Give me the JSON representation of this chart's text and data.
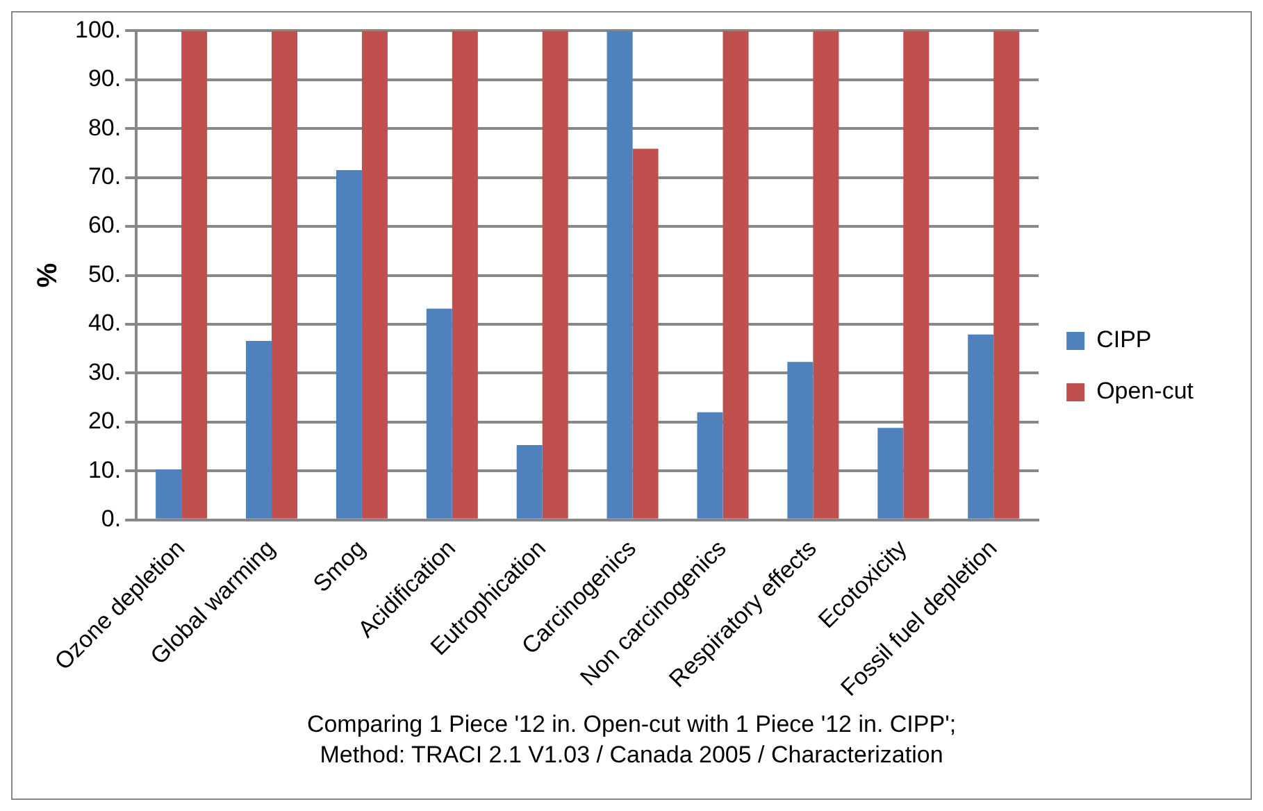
{
  "chart_data": {
    "type": "bar",
    "ylabel": "%",
    "categories": [
      "Ozone depletion",
      "Global warming",
      "Smog",
      "Acidification",
      "Eutrophication",
      "Carcinogenics",
      "Non carcinogenics",
      "Respiratory effects",
      "Ecotoxicity",
      "Fossil fuel depletion"
    ],
    "series": [
      {
        "name": "CIPP",
        "color": "#4f81bd",
        "values": [
          10.3,
          36.6,
          71.5,
          43.2,
          15.3,
          100,
          22.0,
          32.3,
          18.8,
          37.9
        ]
      },
      {
        "name": "Open-cut",
        "color": "#c0504d",
        "values": [
          100,
          100,
          100,
          100,
          100,
          75.9,
          100,
          100,
          100,
          100
        ]
      }
    ],
    "ylim": [
      0,
      100
    ],
    "yticks": [
      {
        "value": 0,
        "label": "0."
      },
      {
        "value": 10,
        "label": "10."
      },
      {
        "value": 20,
        "label": "20."
      },
      {
        "value": 30,
        "label": "30."
      },
      {
        "value": 40,
        "label": "40."
      },
      {
        "value": 50,
        "label": "50."
      },
      {
        "value": 60,
        "label": "60."
      },
      {
        "value": 70,
        "label": "70."
      },
      {
        "value": 80,
        "label": "80."
      },
      {
        "value": 90,
        "label": "90."
      },
      {
        "value": 100,
        "label": "100."
      }
    ],
    "grid": "y",
    "legend": "right",
    "annotations": [
      "Comparing 1 Piece '12 in. Open-cut with 1 Piece '12 in. CIPP';",
      "Method: TRACI 2.1 V1.03 / Canada 2005 / Characterization"
    ]
  }
}
